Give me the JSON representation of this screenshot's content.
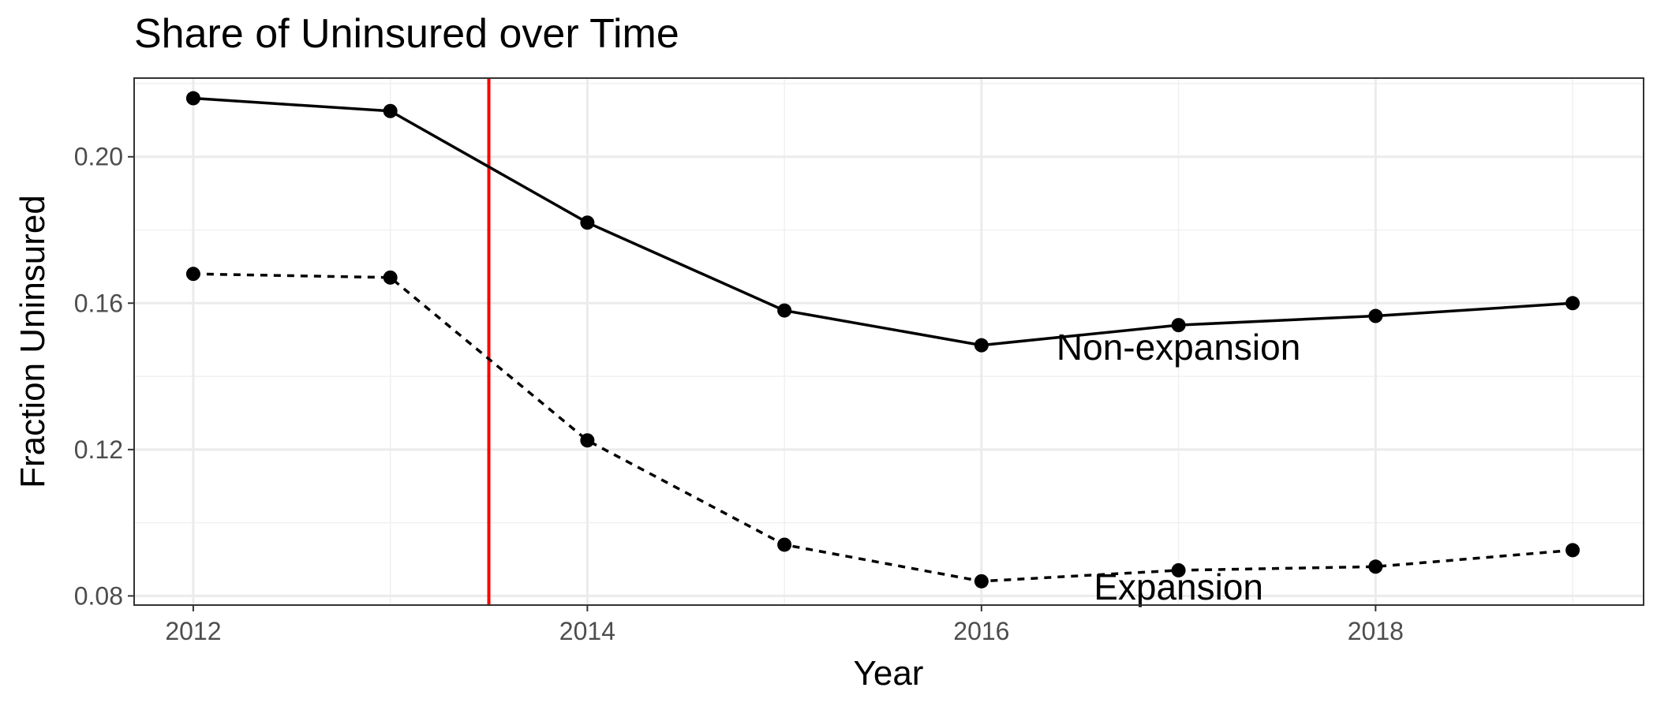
{
  "chart_data": {
    "type": "line",
    "title": "Share of Uninsured over Time",
    "xlabel": "Year",
    "ylabel": "Fraction Uninsured",
    "xlim": [
      2011.7,
      2019.36
    ],
    "ylim": [
      0.0775,
      0.2215
    ],
    "x_ticks": [
      2012,
      2014,
      2016,
      2018
    ],
    "y_ticks": [
      0.08,
      0.12,
      0.16,
      0.2
    ],
    "y_tick_labels": [
      "0.08",
      "0.12",
      "0.16",
      "0.20"
    ],
    "grid": true,
    "legend": "none",
    "x": [
      2012,
      2013,
      2014,
      2015,
      2016,
      2017,
      2018,
      2019
    ],
    "series": [
      {
        "name": "Non-expansion",
        "line_style": "solid",
        "color": "#000000",
        "values": [
          0.216,
          0.2125,
          0.182,
          0.158,
          0.1485,
          0.154,
          0.1565,
          0.16
        ],
        "label_at": {
          "x": 2017.0,
          "y": 0.148
        }
      },
      {
        "name": "Expansion",
        "line_style": "dashed",
        "color": "#000000",
        "values": [
          0.168,
          0.167,
          0.1225,
          0.094,
          0.084,
          0.087,
          0.088,
          0.0925
        ],
        "label_at": {
          "x": 2017.0,
          "y": 0.0825
        }
      }
    ],
    "reference_lines": [
      {
        "orientation": "vertical",
        "x": 2013.5,
        "color": "#ff0000"
      }
    ]
  }
}
